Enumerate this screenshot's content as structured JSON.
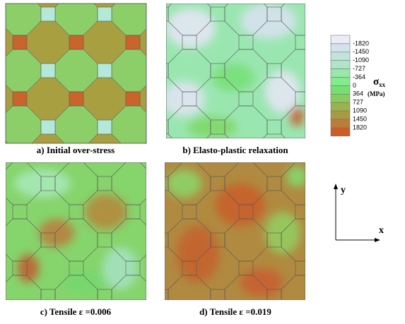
{
  "panels": [
    {
      "caption": "a) Initial over-stress"
    },
    {
      "caption": "b) Elasto-plastic relaxation"
    },
    {
      "caption": "c) Tensile ε =0.006"
    },
    {
      "caption": "d) Tensile ε =0.019"
    }
  ],
  "colorbar": {
    "symbol": "σ",
    "subscript": "xx",
    "unit": "(MPa)",
    "levels": [
      -1820,
      -1450,
      -1090,
      -727,
      -364,
      0,
      364,
      727,
      1090,
      1450,
      1820
    ],
    "colors": [
      "#ececf6",
      "#d4e2ee",
      "#c0e4dc",
      "#ace6c6",
      "#98e8ac",
      "#84ea8e",
      "#74e072",
      "#86cc5e",
      "#9cb24c",
      "#a89a40",
      "#bc7c3a",
      "#cc5c28"
    ]
  },
  "axes": {
    "y": "y",
    "x": "x"
  }
}
